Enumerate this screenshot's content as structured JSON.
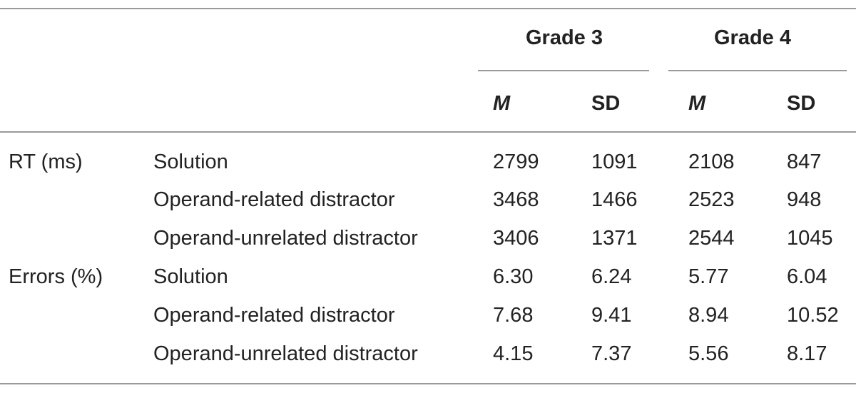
{
  "table": {
    "groups": [
      {
        "label": "Grade 3",
        "sub": [
          "M",
          "SD"
        ]
      },
      {
        "label": "Grade 4",
        "sub": [
          "M",
          "SD"
        ]
      }
    ],
    "rows": [
      {
        "measure": "RT (ms)",
        "condition": "Solution",
        "values": [
          "2799",
          "1091",
          "2108",
          "847"
        ]
      },
      {
        "measure": "",
        "condition": "Operand-related distractor",
        "values": [
          "3468",
          "1466",
          "2523",
          "948"
        ]
      },
      {
        "measure": "",
        "condition": "Operand-unrelated distractor",
        "values": [
          "3406",
          "1371",
          "2544",
          "1045"
        ]
      },
      {
        "measure": "Errors (%)",
        "condition": "Solution",
        "values": [
          "6.30",
          "6.24",
          "5.77",
          "6.04"
        ]
      },
      {
        "measure": "",
        "condition": "Operand-related distractor",
        "values": [
          "7.68",
          "9.41",
          "8.94",
          "10.52"
        ]
      },
      {
        "measure": "",
        "condition": "Operand-unrelated distractor",
        "values": [
          "4.15",
          "7.37",
          "5.56",
          "8.17"
        ]
      }
    ]
  }
}
